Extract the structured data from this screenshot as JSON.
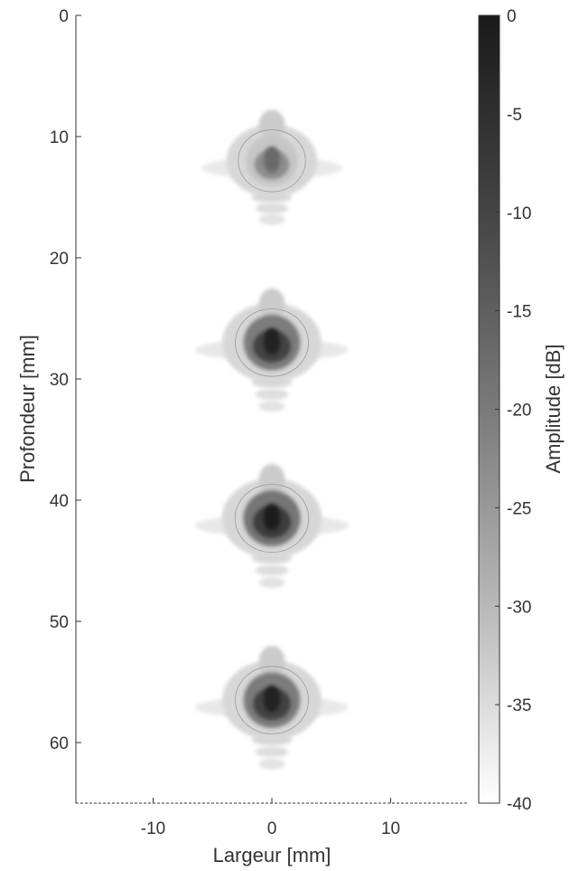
{
  "chart_data": {
    "type": "heatmap",
    "title": "",
    "xlabel": "Largeur [mm]",
    "ylabel": "Profondeur [mm]",
    "xlim": [
      -16.5,
      16.5
    ],
    "ylim": [
      0,
      65
    ],
    "y_reversed": true,
    "x_ticks": [
      -10,
      0,
      10
    ],
    "x_tick_labels": [
      "-10",
      "0",
      "10"
    ],
    "y_ticks": [
      0,
      10,
      20,
      30,
      40,
      50,
      60
    ],
    "y_tick_labels": [
      "0",
      "10",
      "20",
      "30",
      "40",
      "50",
      "60"
    ],
    "grid": false,
    "colormap": "gray (black = high amplitude, white = low)",
    "colorbar": {
      "label": "Amplitude [dB]",
      "range": [
        -40,
        0
      ],
      "ticks": [
        0,
        -5,
        -10,
        -15,
        -20,
        -25,
        -30,
        -35,
        -40
      ],
      "tick_labels": [
        "0",
        "-5",
        "-10",
        "-15",
        "-20",
        "-25",
        "-30",
        "-35",
        "-40"
      ],
      "placement": "right"
    },
    "point_scatterers": [
      {
        "x": 0,
        "depth": 12,
        "peak_db": -14
      },
      {
        "x": 0,
        "depth": 27,
        "peak_db": -1
      },
      {
        "x": 0,
        "depth": 41.5,
        "peak_db": 0
      },
      {
        "x": 0,
        "depth": 56.5,
        "peak_db": -1
      }
    ]
  },
  "colors": {
    "background": "#ffffff",
    "axis": "#333333",
    "contour": "#9a9a9a",
    "colormap_high": "#1a1a1a",
    "colormap_low": "#ffffff"
  }
}
